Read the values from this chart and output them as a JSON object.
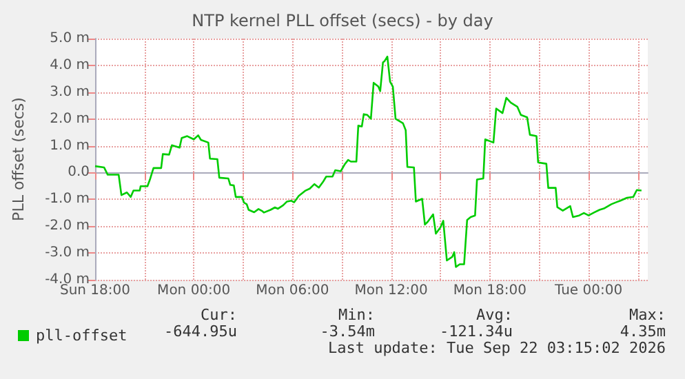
{
  "chart_data": {
    "type": "line",
    "title": "NTP kernel PLL offset (secs) - by day",
    "ylabel": "PLL offset (secs)",
    "x": [
      "2026-09-20T18:00",
      "2026-09-20T18:33",
      "2026-09-20T18:46",
      "2026-09-20T19:26",
      "2026-09-20T19:36",
      "2026-09-20T19:56",
      "2026-09-20T20:10",
      "2026-09-20T20:20",
      "2026-09-20T20:43",
      "2026-09-20T20:46",
      "2026-09-20T21:11",
      "2026-09-20T21:20",
      "2026-09-20T21:33",
      "2026-09-20T22:01",
      "2026-09-20T22:07",
      "2026-09-20T22:30",
      "2026-09-20T22:40",
      "2026-09-20T23:08",
      "2026-09-20T23:16",
      "2026-09-20T23:36",
      "2026-09-21T00:00",
      "2026-09-21T00:16",
      "2026-09-21T00:26",
      "2026-09-21T00:53",
      "2026-09-21T00:59",
      "2026-09-21T01:26",
      "2026-09-21T01:33",
      "2026-09-21T02:06",
      "2026-09-21T02:13",
      "2026-09-21T02:26",
      "2026-09-21T02:33",
      "2026-09-21T02:56",
      "2026-09-21T03:03",
      "2026-09-21T03:13",
      "2026-09-21T03:20",
      "2026-09-21T03:40",
      "2026-09-21T03:56",
      "2026-09-21T04:10",
      "2026-09-21T04:16",
      "2026-09-21T04:40",
      "2026-09-21T04:56",
      "2026-09-21T05:07",
      "2026-09-21T05:26",
      "2026-09-21T05:40",
      "2026-09-21T05:56",
      "2026-09-21T06:06",
      "2026-09-21T06:23",
      "2026-09-21T06:46",
      "2026-09-21T07:03",
      "2026-09-21T07:20",
      "2026-09-21T07:36",
      "2026-09-21T07:53",
      "2026-09-21T08:03",
      "2026-09-21T08:26",
      "2026-09-21T08:36",
      "2026-09-21T08:56",
      "2026-09-21T09:10",
      "2026-09-21T09:23",
      "2026-09-21T09:33",
      "2026-09-21T09:53",
      "2026-09-21T10:00",
      "2026-09-21T10:13",
      "2026-09-21T10:20",
      "2026-09-21T10:33",
      "2026-09-21T10:46",
      "2026-09-21T10:56",
      "2026-09-21T11:13",
      "2026-09-21T11:20",
      "2026-09-21T11:30",
      "2026-09-21T11:36",
      "2026-09-21T11:46",
      "2026-09-21T11:56",
      "2026-09-21T12:06",
      "2026-09-21T12:16",
      "2026-09-21T12:43",
      "2026-09-21T12:53",
      "2026-09-21T12:59",
      "2026-09-21T13:23",
      "2026-09-21T13:30",
      "2026-09-21T13:53",
      "2026-09-21T14:03",
      "2026-09-21T14:13",
      "2026-09-21T14:33",
      "2026-09-21T14:43",
      "2026-09-21T15:00",
      "2026-09-21T15:10",
      "2026-09-21T15:23",
      "2026-09-21T15:43",
      "2026-09-21T15:50",
      "2026-09-21T15:56",
      "2026-09-21T16:10",
      "2026-09-21T16:26",
      "2026-09-21T16:37",
      "2026-09-21T16:50",
      "2026-09-21T17:06",
      "2026-09-21T17:13",
      "2026-09-21T17:36",
      "2026-09-21T17:43",
      "2026-09-21T18:13",
      "2026-09-21T18:23",
      "2026-09-21T18:46",
      "2026-09-21T19:00",
      "2026-09-21T19:16",
      "2026-09-21T19:40",
      "2026-09-21T19:53",
      "2026-09-21T20:16",
      "2026-09-21T20:26",
      "2026-09-21T20:50",
      "2026-09-21T20:56",
      "2026-09-21T21:26",
      "2026-09-21T21:33",
      "2026-09-21T22:00",
      "2026-09-21T22:06",
      "2026-09-21T22:26",
      "2026-09-21T22:53",
      "2026-09-21T23:03",
      "2026-09-21T23:26",
      "2026-09-21T23:43",
      "2026-09-22T00:00",
      "2026-09-22T00:20",
      "2026-09-22T00:40",
      "2026-09-22T00:56",
      "2026-09-22T01:23",
      "2026-09-22T01:40",
      "2026-09-22T01:56",
      "2026-09-22T02:20",
      "2026-09-22T02:43",
      "2026-09-22T02:56",
      "2026-09-22T03:13"
    ],
    "series": [
      {
        "name": "pll-offset",
        "color": "#00cc00",
        "values": [
          0.24,
          0.19,
          -0.08,
          -0.08,
          -0.84,
          -0.74,
          -0.91,
          -0.67,
          -0.67,
          -0.51,
          -0.51,
          -0.26,
          0.17,
          0.17,
          0.69,
          0.67,
          1.02,
          0.93,
          1.29,
          1.36,
          1.24,
          1.39,
          1.22,
          1.12,
          0.52,
          0.5,
          -0.19,
          -0.22,
          -0.46,
          -0.48,
          -0.91,
          -0.91,
          -1.12,
          -1.18,
          -1.39,
          -1.48,
          -1.36,
          -1.44,
          -1.49,
          -1.39,
          -1.3,
          -1.35,
          -1.22,
          -1.08,
          -1.05,
          -1.11,
          -0.87,
          -0.68,
          -0.6,
          -0.43,
          -0.56,
          -0.32,
          -0.15,
          -0.15,
          0.09,
          0.05,
          0.3,
          0.47,
          0.41,
          0.41,
          1.75,
          1.72,
          2.18,
          2.15,
          2.01,
          3.35,
          3.21,
          3.04,
          4.11,
          4.16,
          4.33,
          3.39,
          3.21,
          2.01,
          1.84,
          1.58,
          0.21,
          0.19,
          -1.08,
          -0.98,
          -1.94,
          -1.84,
          -1.56,
          -2.28,
          -2.04,
          -1.8,
          -3.28,
          -3.14,
          -2.97,
          -3.52,
          -3.42,
          -3.42,
          -1.77,
          -1.66,
          -1.6,
          -0.26,
          -0.22,
          1.24,
          1.12,
          2.39,
          2.22,
          2.79,
          2.61,
          2.46,
          2.15,
          2.06,
          1.41,
          1.36,
          0.38,
          0.33,
          -0.57,
          -0.57,
          -1.29,
          -1.42,
          -1.25,
          -1.66,
          -1.6,
          -1.51,
          -1.6,
          -1.49,
          -1.39,
          -1.34,
          -1.18,
          -1.11,
          -1.05,
          -0.94,
          -0.91,
          -0.65,
          -0.67
        ]
      }
    ],
    "xlim": [
      "2026-09-20T18:00",
      "2026-09-22T03:36"
    ],
    "xticks": [
      {
        "value": "2026-09-20T18:00",
        "label": "Sun 18:00"
      },
      {
        "value": "2026-09-20T21:00",
        "label": null
      },
      {
        "value": "2026-09-21T00:00",
        "label": "Mon 00:00"
      },
      {
        "value": "2026-09-21T03:00",
        "label": null
      },
      {
        "value": "2026-09-21T06:00",
        "label": "Mon 06:00"
      },
      {
        "value": "2026-09-21T09:00",
        "label": null
      },
      {
        "value": "2026-09-21T12:00",
        "label": "Mon 12:00"
      },
      {
        "value": "2026-09-21T15:00",
        "label": null
      },
      {
        "value": "2026-09-21T18:00",
        "label": "Mon 18:00"
      },
      {
        "value": "2026-09-21T21:00",
        "label": null
      },
      {
        "value": "2026-09-22T00:00",
        "label": "Tue 00:00"
      },
      {
        "value": "2026-09-22T03:00",
        "label": null
      }
    ],
    "ylim": [
      -4,
      5
    ],
    "yticks": [
      {
        "value": -4,
        "label": "-4.0 m"
      },
      {
        "value": -3,
        "label": "-3.0 m"
      },
      {
        "value": -2,
        "label": "-2.0 m"
      },
      {
        "value": -1,
        "label": "-1.0 m"
      },
      {
        "value": 0,
        "label": "0.0"
      },
      {
        "value": 1,
        "label": "1.0 m"
      },
      {
        "value": 2,
        "label": "2.0 m"
      },
      {
        "value": 3,
        "label": "3.0 m"
      },
      {
        "value": 4,
        "label": "4.0 m"
      },
      {
        "value": 5,
        "label": "5.0 m"
      }
    ],
    "grid": true,
    "legend": "bottom left",
    "marker": "none",
    "line_style": "solid",
    "annotations": [
      "Cur:",
      "Min:",
      "Avg:",
      "Max:",
      "-644.95u",
      "-3.54m",
      "-121.34u",
      "4.35m",
      "Last update: Tue Sep 22 03:15:02 2026"
    ]
  }
}
